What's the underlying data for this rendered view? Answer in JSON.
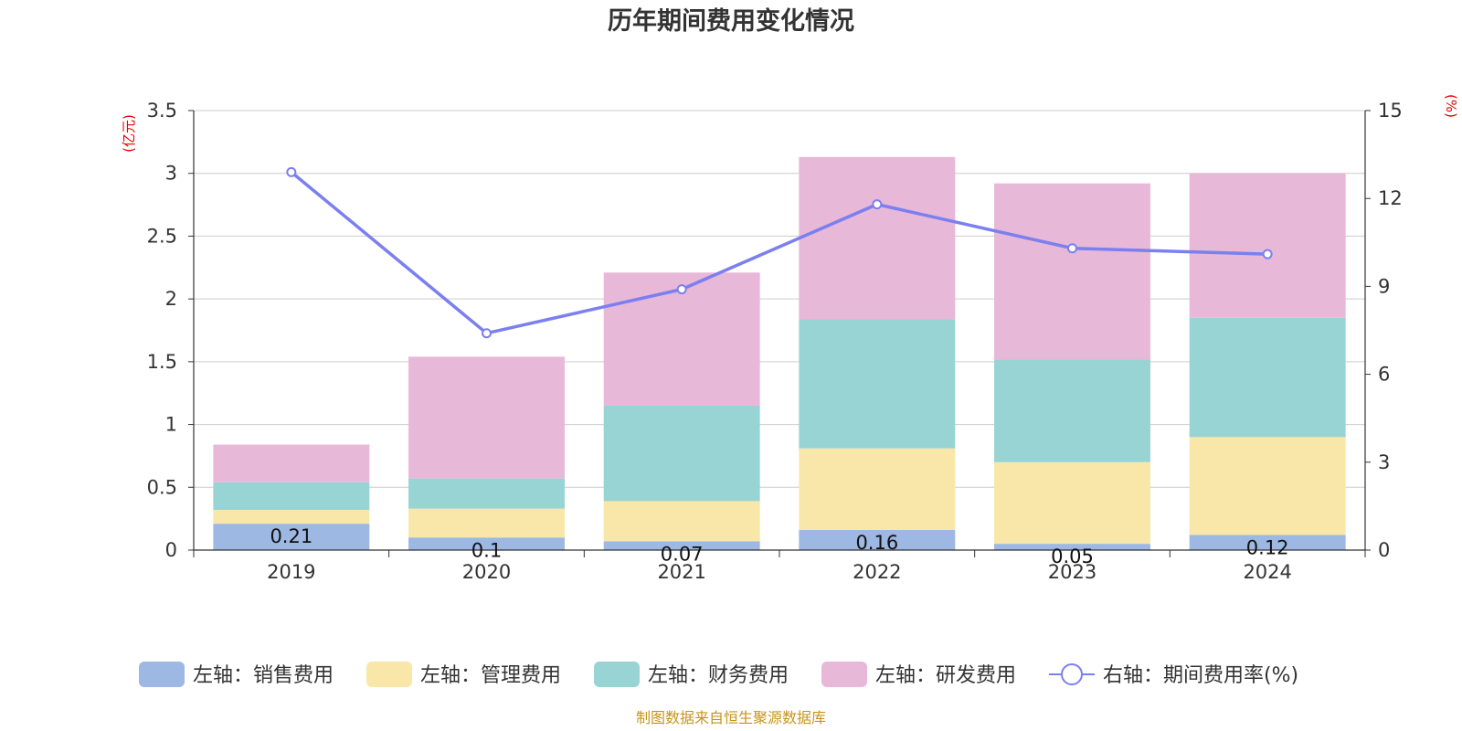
{
  "chart_data": {
    "type": "bar",
    "stacked": true,
    "title": "历年期间费用变化情况",
    "categories": [
      "2019",
      "2020",
      "2021",
      "2022",
      "2023",
      "2024"
    ],
    "left_axis": {
      "unit": "(亿元)",
      "ylim": [
        0,
        3.5
      ],
      "ticks": [
        "0",
        "0.5",
        "1",
        "1.5",
        "2",
        "2.5",
        "3",
        "3.5"
      ]
    },
    "right_axis": {
      "unit": "(%)",
      "ylim": [
        0,
        15
      ],
      "ticks": [
        "0",
        "3",
        "6",
        "9",
        "12",
        "15"
      ]
    },
    "series": [
      {
        "name": "左轴：销售费用",
        "type": "bar",
        "axis": "left",
        "color": "#9cb8e3",
        "values": [
          0.21,
          0.1,
          0.07,
          0.16,
          0.05,
          0.12
        ],
        "labels": [
          "0.21",
          "0.1",
          "0.07",
          "0.16",
          "0.05",
          "0.12"
        ]
      },
      {
        "name": "左轴：管理费用",
        "type": "bar",
        "axis": "left",
        "color": "#f8e7a8",
        "values": [
          0.11,
          0.23,
          0.32,
          0.65,
          0.65,
          0.78
        ]
      },
      {
        "name": "左轴：财务费用",
        "type": "bar",
        "axis": "left",
        "color": "#98d4d4",
        "values": [
          0.22,
          0.24,
          0.76,
          1.03,
          0.82,
          0.95
        ]
      },
      {
        "name": "左轴：研发费用",
        "type": "bar",
        "axis": "left",
        "color": "#e8b8d8",
        "values": [
          0.3,
          0.97,
          1.06,
          1.29,
          1.4,
          1.15
        ]
      },
      {
        "name": "右轴：期间费用率(%)",
        "type": "line",
        "axis": "right",
        "color": "#7b7ff0",
        "values": [
          12.9,
          7.4,
          8.9,
          11.8,
          10.3,
          10.1
        ]
      }
    ]
  },
  "source": "制图数据来自恒生聚源数据库"
}
